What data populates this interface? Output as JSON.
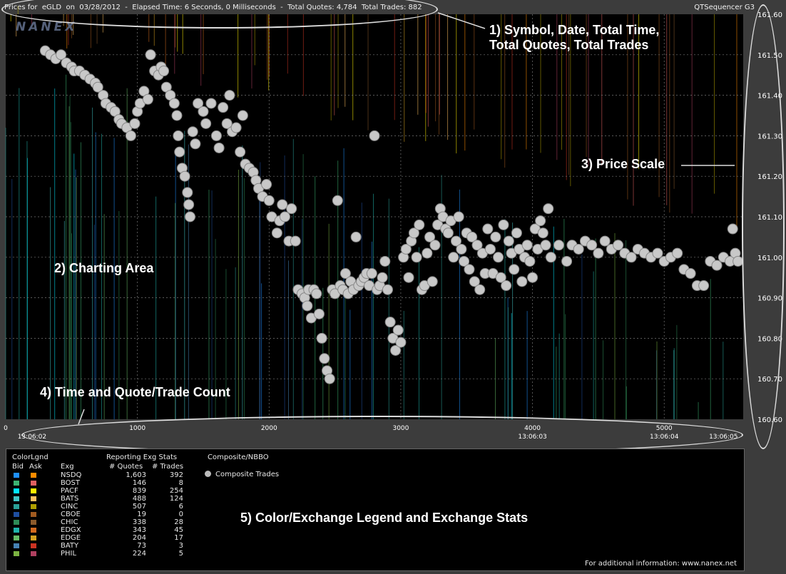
{
  "header": {
    "prices_for": "Prices for",
    "symbol": "eGLD",
    "on": "on",
    "date": "03/28/2012",
    "elapsed_label": "Elapsed Time: 6 Seconds, 0 Milliseconds",
    "quotes_label": "Total Quotes: 4,784",
    "trades_label": "Total Trades: 882",
    "app_name": "QTSequencer G3"
  },
  "logo": "NANEX",
  "annotations": {
    "a1_line1": "1) Symbol, Date, Total Time,",
    "a1_line2": "Total Quotes, Total Trades",
    "a2": "2) Charting Area",
    "a3": "3) Price Scale",
    "a4": "4) Time and Quote/Trade Count",
    "a5": "5) Color/Exchange Legend and Exchange Stats"
  },
  "chart_data": {
    "type": "scatter",
    "title": "",
    "y_ticks": [
      "161.60",
      "161.50",
      "161.40",
      "161.30",
      "161.20",
      "161.10",
      "161.00",
      "160.90",
      "160.80",
      "160.70",
      "160.60"
    ],
    "ylim": [
      160.6,
      161.6
    ],
    "x_ticks": [
      "0",
      "1000",
      "2000",
      "3000",
      "4000",
      "5000"
    ],
    "xlim": [
      0,
      5600
    ],
    "time_labels": [
      {
        "x": 200,
        "label": "13:06:02"
      },
      {
        "x": 4000,
        "label": "13:06:03"
      },
      {
        "x": 5000,
        "label": "13:06:04"
      },
      {
        "x": 5450,
        "label": "13:06:05"
      }
    ],
    "series": [
      {
        "name": "Composite Trades",
        "points": [
          [
            300,
            161.51
          ],
          [
            340,
            161.5
          ],
          [
            380,
            161.49
          ],
          [
            420,
            161.5
          ],
          [
            460,
            161.48
          ],
          [
            500,
            161.47
          ],
          [
            520,
            161.46
          ],
          [
            560,
            161.46
          ],
          [
            600,
            161.45
          ],
          [
            640,
            161.44
          ],
          [
            680,
            161.43
          ],
          [
            700,
            161.42
          ],
          [
            740,
            161.4
          ],
          [
            760,
            161.38
          ],
          [
            800,
            161.37
          ],
          [
            830,
            161.36
          ],
          [
            860,
            161.34
          ],
          [
            880,
            161.33
          ],
          [
            920,
            161.32
          ],
          [
            950,
            161.3
          ],
          [
            980,
            161.33
          ],
          [
            1000,
            161.36
          ],
          [
            1020,
            161.38
          ],
          [
            1050,
            161.41
          ],
          [
            1080,
            161.39
          ],
          [
            1100,
            161.5
          ],
          [
            1130,
            161.46
          ],
          [
            1160,
            161.45
          ],
          [
            1180,
            161.47
          ],
          [
            1200,
            161.46
          ],
          [
            1220,
            161.42
          ],
          [
            1250,
            161.4
          ],
          [
            1280,
            161.38
          ],
          [
            1300,
            161.35
          ],
          [
            1310,
            161.3
          ],
          [
            1320,
            161.26
          ],
          [
            1340,
            161.22
          ],
          [
            1360,
            161.2
          ],
          [
            1380,
            161.16
          ],
          [
            1390,
            161.13
          ],
          [
            1400,
            161.1
          ],
          [
            1420,
            161.31
          ],
          [
            1440,
            161.28
          ],
          [
            1460,
            161.38
          ],
          [
            1500,
            161.36
          ],
          [
            1520,
            161.33
          ],
          [
            1560,
            161.38
          ],
          [
            1600,
            161.3
          ],
          [
            1620,
            161.27
          ],
          [
            1650,
            161.37
          ],
          [
            1680,
            161.33
          ],
          [
            1700,
            161.4
          ],
          [
            1720,
            161.31
          ],
          [
            1750,
            161.32
          ],
          [
            1780,
            161.26
          ],
          [
            1800,
            161.35
          ],
          [
            1820,
            161.23
          ],
          [
            1850,
            161.22
          ],
          [
            1880,
            161.21
          ],
          [
            1900,
            161.19
          ],
          [
            1920,
            161.17
          ],
          [
            1950,
            161.15
          ],
          [
            1980,
            161.18
          ],
          [
            2000,
            161.14
          ],
          [
            2020,
            161.1
          ],
          [
            2060,
            161.06
          ],
          [
            2080,
            161.09
          ],
          [
            2100,
            161.13
          ],
          [
            2120,
            161.1
          ],
          [
            2150,
            161.04
          ],
          [
            2170,
            161.12
          ],
          [
            2200,
            161.04
          ],
          [
            2220,
            160.92
          ],
          [
            2250,
            160.91
          ],
          [
            2270,
            160.9
          ],
          [
            2290,
            160.88
          ],
          [
            2300,
            160.92
          ],
          [
            2320,
            160.85
          ],
          [
            2340,
            160.92
          ],
          [
            2360,
            160.91
          ],
          [
            2380,
            160.86
          ],
          [
            2400,
            160.8
          ],
          [
            2420,
            160.75
          ],
          [
            2440,
            160.72
          ],
          [
            2460,
            160.7
          ],
          [
            2480,
            160.92
          ],
          [
            2500,
            160.91
          ],
          [
            2520,
            161.14
          ],
          [
            2540,
            160.93
          ],
          [
            2560,
            160.92
          ],
          [
            2580,
            160.96
          ],
          [
            2600,
            160.91
          ],
          [
            2620,
            160.94
          ],
          [
            2640,
            160.92
          ],
          [
            2660,
            161.05
          ],
          [
            2680,
            160.93
          ],
          [
            2700,
            160.94
          ],
          [
            2720,
            160.95
          ],
          [
            2740,
            160.96
          ],
          [
            2760,
            160.93
          ],
          [
            2780,
            160.96
          ],
          [
            2800,
            161.3
          ],
          [
            2820,
            160.92
          ],
          [
            2840,
            160.93
          ],
          [
            2860,
            160.95
          ],
          [
            2880,
            160.99
          ],
          [
            2900,
            160.92
          ],
          [
            2920,
            160.84
          ],
          [
            2940,
            160.8
          ],
          [
            2960,
            160.77
          ],
          [
            2980,
            160.82
          ],
          [
            3000,
            160.79
          ],
          [
            3020,
            161.0
          ],
          [
            3040,
            161.02
          ],
          [
            3060,
            160.95
          ],
          [
            3080,
            161.04
          ],
          [
            3100,
            161.06
          ],
          [
            3120,
            161.0
          ],
          [
            3140,
            161.08
          ],
          [
            3160,
            160.92
          ],
          [
            3180,
            160.93
          ],
          [
            3200,
            161.01
          ],
          [
            3220,
            161.05
          ],
          [
            3240,
            160.94
          ],
          [
            3260,
            161.03
          ],
          [
            3280,
            161.08
          ],
          [
            3300,
            161.12
          ],
          [
            3320,
            161.1
          ],
          [
            3340,
            161.07
          ],
          [
            3360,
            161.06
          ],
          [
            3380,
            161.09
          ],
          [
            3400,
            161.0
          ],
          [
            3420,
            161.04
          ],
          [
            3440,
            161.1
          ],
          [
            3460,
            161.02
          ],
          [
            3480,
            160.99
          ],
          [
            3500,
            161.06
          ],
          [
            3520,
            160.97
          ],
          [
            3540,
            161.05
          ],
          [
            3560,
            160.94
          ],
          [
            3580,
            161.03
          ],
          [
            3600,
            160.92
          ],
          [
            3620,
            161.01
          ],
          [
            3640,
            160.96
          ],
          [
            3660,
            161.07
          ],
          [
            3680,
            161.02
          ],
          [
            3700,
            160.96
          ],
          [
            3720,
            161.05
          ],
          [
            3740,
            161.0
          ],
          [
            3760,
            160.95
          ],
          [
            3780,
            161.08
          ],
          [
            3800,
            160.93
          ],
          [
            3820,
            161.04
          ],
          [
            3840,
            161.01
          ],
          [
            3860,
            160.97
          ],
          [
            3880,
            161.06
          ],
          [
            3900,
            161.02
          ],
          [
            3920,
            160.94
          ],
          [
            3940,
            161.0
          ],
          [
            3960,
            161.03
          ],
          [
            3980,
            160.99
          ],
          [
            4000,
            160.95
          ],
          [
            4020,
            161.07
          ],
          [
            4040,
            161.02
          ],
          [
            4060,
            161.09
          ],
          [
            4080,
            161.06
          ],
          [
            4100,
            161.03
          ],
          [
            4120,
            161.12
          ],
          [
            4140,
            161.0
          ],
          [
            4200,
            161.03
          ],
          [
            4260,
            160.99
          ],
          [
            4300,
            161.03
          ],
          [
            4350,
            161.02
          ],
          [
            4400,
            161.04
          ],
          [
            4450,
            161.03
          ],
          [
            4500,
            161.01
          ],
          [
            4550,
            161.04
          ],
          [
            4600,
            161.02
          ],
          [
            4650,
            161.03
          ],
          [
            4700,
            161.01
          ],
          [
            4750,
            161.0
          ],
          [
            4800,
            161.02
          ],
          [
            4850,
            161.01
          ],
          [
            4900,
            161.0
          ],
          [
            4950,
            161.01
          ],
          [
            5000,
            160.99
          ],
          [
            5050,
            161.0
          ],
          [
            5100,
            161.01
          ],
          [
            5150,
            160.97
          ],
          [
            5200,
            160.96
          ],
          [
            5250,
            160.93
          ],
          [
            5300,
            160.93
          ],
          [
            5350,
            160.99
          ],
          [
            5400,
            160.98
          ],
          [
            5450,
            161.0
          ],
          [
            5500,
            160.99
          ],
          [
            5520,
            161.07
          ],
          [
            5540,
            161.01
          ],
          [
            5560,
            160.99
          ]
        ]
      }
    ]
  },
  "legend": {
    "title_colorlgnd": "ColorLgnd",
    "title_stats": "Reporting Exg Stats",
    "title_composite": "Composite/NBBO",
    "col_bid": "Bid",
    "col_ask": "Ask",
    "col_exg": "Exg",
    "col_quotes": "# Quotes",
    "col_trades": "# Trades",
    "composite_trades": "Composite Trades",
    "exchanges": [
      {
        "exg": "NSDQ",
        "quotes": "1,603",
        "trades": "392",
        "bid": "#1e90ff",
        "ask": "#ff8c00"
      },
      {
        "exg": "BOST",
        "quotes": "146",
        "trades": "8",
        "bid": "#3cb371",
        "ask": "#e06060"
      },
      {
        "exg": "PACF",
        "quotes": "839",
        "trades": "254",
        "bid": "#00e5ff",
        "ask": "#ffee00"
      },
      {
        "exg": "BATS",
        "quotes": "488",
        "trades": "124",
        "bid": "#40c4c4",
        "ask": "#ffc060"
      },
      {
        "exg": "CINC",
        "quotes": "507",
        "trades": "6",
        "bid": "#2aa198",
        "ask": "#b0a000"
      },
      {
        "exg": "CBOE",
        "quotes": "19",
        "trades": "0",
        "bid": "#1f4fa0",
        "ask": "#a05a20"
      },
      {
        "exg": "CHIC",
        "quotes": "338",
        "trades": "28",
        "bid": "#2e8b57",
        "ask": "#8b5a2b"
      },
      {
        "exg": "EDGX",
        "quotes": "343",
        "trades": "45",
        "bid": "#20b2aa",
        "ask": "#d2691e"
      },
      {
        "exg": "EDGE",
        "quotes": "204",
        "trades": "17",
        "bid": "#66bb66",
        "ask": "#d4a020"
      },
      {
        "exg": "BATY",
        "quotes": "73",
        "trades": "3",
        "bid": "#4682b4",
        "ask": "#cc3322"
      },
      {
        "exg": "PHIL",
        "quotes": "224",
        "trades": "5",
        "bid": "#7cb342",
        "ask": "#b04060"
      }
    ],
    "footer": "For additional information: www.nanex.net"
  }
}
